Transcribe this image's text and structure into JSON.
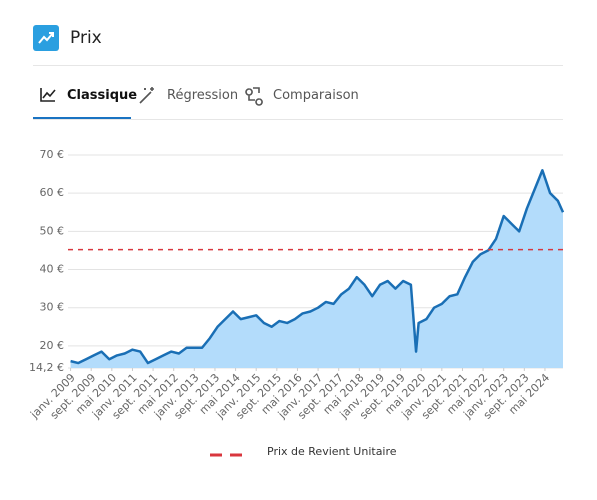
{
  "header": {
    "title": "Prix"
  },
  "tabs": [
    "Classique",
    "Régression",
    "Comparaison"
  ],
  "chart_data": {
    "type": "area",
    "x": [
      "2009-01",
      "2009-04",
      "2009-07",
      "2009-10",
      "2010-01",
      "2010-04",
      "2010-07",
      "2010-10",
      "2011-01",
      "2011-04",
      "2011-07",
      "2011-10",
      "2012-01",
      "2012-04",
      "2012-07",
      "2012-10",
      "2013-01",
      "2013-04",
      "2013-07",
      "2013-10",
      "2014-01",
      "2014-04",
      "2014-07",
      "2014-10",
      "2015-01",
      "2015-04",
      "2015-07",
      "2015-10",
      "2016-01",
      "2016-04",
      "2016-07",
      "2016-10",
      "2017-01",
      "2017-04",
      "2017-07",
      "2017-10",
      "2018-01",
      "2018-04",
      "2018-07",
      "2018-10",
      "2019-01",
      "2019-04",
      "2019-07",
      "2019-10",
      "2020-01",
      "2020-03",
      "2020-04",
      "2020-07",
      "2020-10",
      "2021-01",
      "2021-04",
      "2021-07",
      "2021-10",
      "2022-01",
      "2022-04",
      "2022-07",
      "2022-10",
      "2023-01",
      "2023-04",
      "2023-07",
      "2023-10",
      "2024-01",
      "2024-04",
      "2024-07",
      "2024-10",
      "2024-12"
    ],
    "values": [
      16,
      15.5,
      16.5,
      17.5,
      18.5,
      16.5,
      17.5,
      18,
      19,
      18.5,
      15.5,
      16.5,
      17.5,
      18.5,
      18,
      19.5,
      19.5,
      19.5,
      22,
      25,
      27,
      29,
      27,
      27.5,
      28,
      26,
      25,
      26.5,
      26,
      27,
      28.5,
      29,
      30,
      31.5,
      31,
      33.5,
      35,
      38,
      36,
      33,
      36,
      37,
      35,
      37,
      36,
      18.5,
      26,
      27,
      30,
      31,
      33,
      33.5,
      38,
      42,
      44,
      45,
      48,
      54,
      52,
      50,
      56,
      61,
      66,
      60,
      58,
      55
    ],
    "color": "#1a6fb5",
    "fill": "#b3dcfb",
    "xlim": [
      "2008-12",
      "2024-12"
    ],
    "xticks": [
      {
        "value": "2009-01",
        "label": "janv. 2009"
      },
      {
        "value": "2009-09",
        "label": "sept. 2009"
      },
      {
        "value": "2010-05",
        "label": "mai 2010"
      },
      {
        "value": "2011-01",
        "label": "janv. 2011"
      },
      {
        "value": "2011-09",
        "label": "sept. 2011"
      },
      {
        "value": "2012-05",
        "label": "mai 2012"
      },
      {
        "value": "2013-01",
        "label": "janv. 2013"
      },
      {
        "value": "2013-09",
        "label": "sept. 2013"
      },
      {
        "value": "2014-05",
        "label": "mai 2014"
      },
      {
        "value": "2015-01",
        "label": "janv. 2015"
      },
      {
        "value": "2015-09",
        "label": "sept. 2015"
      },
      {
        "value": "2016-05",
        "label": "mai 2016"
      },
      {
        "value": "2017-01",
        "label": "janv. 2017"
      },
      {
        "value": "2017-09",
        "label": "sept. 2017"
      },
      {
        "value": "2018-05",
        "label": "mai 2018"
      },
      {
        "value": "2019-01",
        "label": "janv. 2019"
      },
      {
        "value": "2019-09",
        "label": "sept. 2019"
      },
      {
        "value": "2020-05",
        "label": "mai 2020"
      },
      {
        "value": "2021-01",
        "label": "janv. 2021"
      },
      {
        "value": "2021-09",
        "label": "sept. 2021"
      },
      {
        "value": "2022-05",
        "label": "mai 2022"
      },
      {
        "value": "2023-01",
        "label": "janv. 2023"
      },
      {
        "value": "2023-09",
        "label": "sept. 2023"
      },
      {
        "value": "2024-05",
        "label": "mai 2024"
      }
    ],
    "ylim": [
      14.2,
      70
    ],
    "yticks": [
      {
        "value": 14.2,
        "label": "14,2 €"
      },
      {
        "value": 20,
        "label": "20 €"
      },
      {
        "value": 30,
        "label": "30 €"
      },
      {
        "value": 40,
        "label": "40 €"
      },
      {
        "value": 50,
        "label": "50 €"
      },
      {
        "value": 60,
        "label": "60 €"
      },
      {
        "value": 70,
        "label": "70 €"
      }
    ],
    "grid": true,
    "reference_line": {
      "name": "Prix de Revient Unitaire",
      "value": 45.2,
      "color": "#d9363e"
    },
    "legend": "bottom"
  }
}
